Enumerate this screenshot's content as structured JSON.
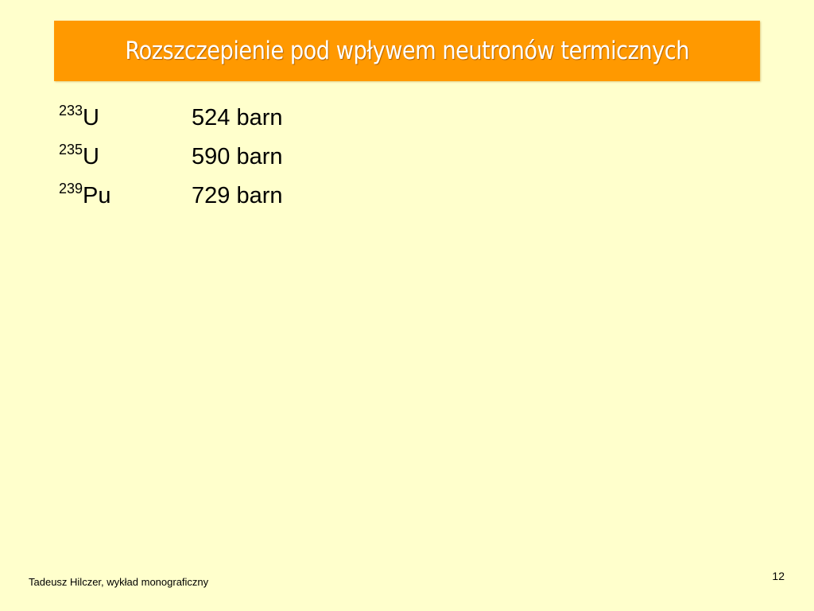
{
  "slide": {
    "title": "Rozszczepienie pod wpływem neutronów termicznych",
    "background_color": "#FFFFCC",
    "title_bar_color": "#FF9900",
    "title_text_color": "#FFFFFF",
    "isotopes": [
      {
        "mass_number": "233",
        "element": "U",
        "cross_section": "524 barn"
      },
      {
        "mass_number": "235",
        "element": "U",
        "cross_section": "590 barn"
      },
      {
        "mass_number": "239",
        "element": "Pu",
        "cross_section": "729 barn"
      }
    ]
  },
  "footer": {
    "author": "Tadeusz Hilczer, wykład monograficzny",
    "slide_number": "12"
  }
}
